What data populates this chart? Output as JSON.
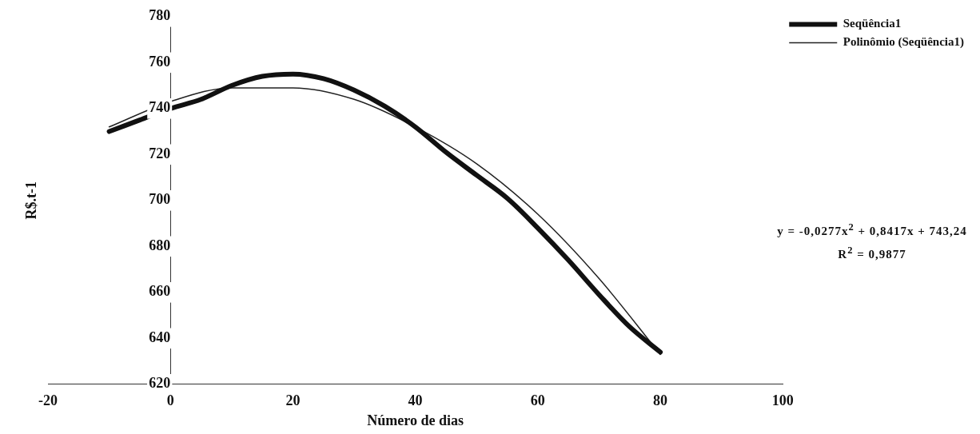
{
  "chart_data": {
    "type": "line",
    "xlabel": "Número de dias",
    "ylabel": "R$.t-1",
    "series": [
      {
        "name": "Seqüência1",
        "color": "#111111",
        "x": [
          -10,
          -5,
          0,
          5,
          10,
          15,
          20,
          25,
          30,
          35,
          40,
          45,
          50,
          55,
          60,
          65,
          70,
          75,
          80
        ],
        "values": [
          730,
          735,
          740,
          744,
          750,
          754,
          755,
          753,
          748,
          741,
          732,
          721,
          711,
          701,
          688,
          674,
          659,
          645,
          634
        ]
      },
      {
        "name": "Polinômio (Seqüência1)",
        "color": "#222222",
        "x": [
          -10,
          0,
          10,
          20,
          30,
          40,
          50,
          60,
          70,
          80
        ],
        "values": [
          732,
          743,
          749,
          749,
          744,
          732,
          716,
          694,
          666,
          633
        ]
      }
    ],
    "xlim": [
      -20,
      100
    ],
    "xticks": [
      -20,
      0,
      20,
      40,
      60,
      80,
      100
    ],
    "ylim": [
      620,
      780
    ],
    "yticks": [
      620,
      640,
      660,
      680,
      700,
      720,
      740,
      760,
      780
    ],
    "annotations": [
      "y = -0,0277x$^{2}$ + 0,8417x + 743,24",
      "R$^{2}$ = 0,9877"
    ],
    "grid": false,
    "legend": "right",
    "marker": "none",
    "line_style": "solid"
  }
}
